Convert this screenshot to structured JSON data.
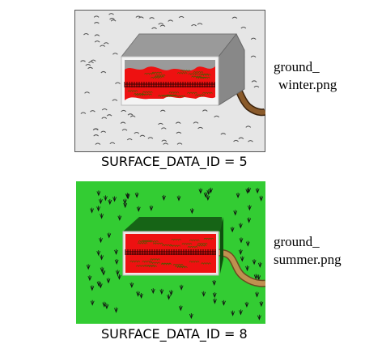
{
  "winter": {
    "file_line1": "ground_",
    "file_line2": "winter.png",
    "id_label": "SURFACE_DATA_ID = 5",
    "ground_color": "#e6e6e6",
    "pattern": "snow-tick"
  },
  "summer": {
    "file_line1": "ground_",
    "file_line2": "summer.png",
    "id_label": "SURFACE_DATA_ID = 8",
    "ground_color": "#33cc33",
    "pattern": "grass-tuft"
  },
  "colors": {
    "building_front": "#ee1111",
    "road": "#7a4a1c",
    "roof_winter": "#9a9a9a",
    "roof_summer": "#166416"
  }
}
